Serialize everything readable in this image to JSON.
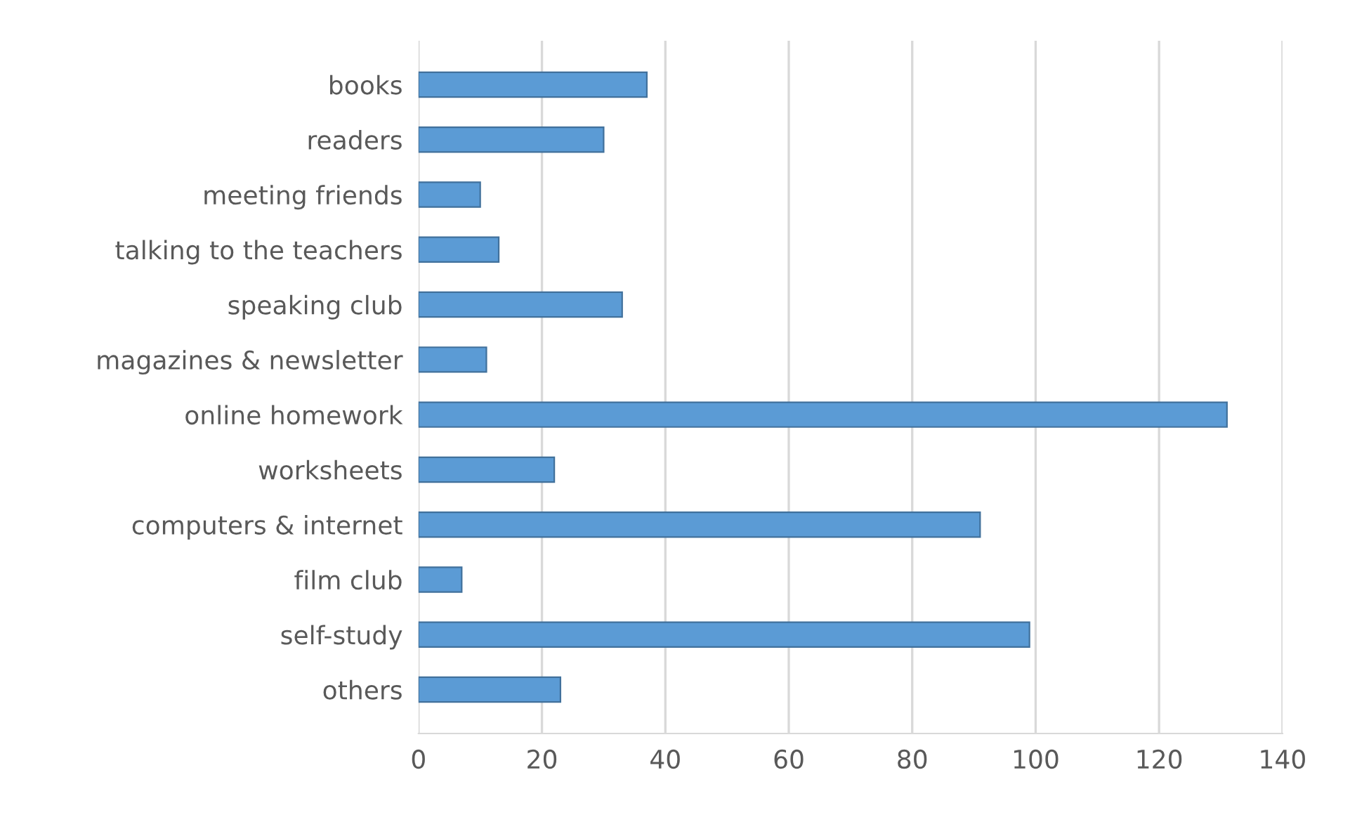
{
  "chart_data": {
    "type": "bar",
    "orientation": "horizontal",
    "categories": [
      "books",
      "readers",
      "meeting friends",
      "talking to the teachers",
      "speaking club",
      "magazines & newsletter",
      "online homework",
      "worksheets",
      "computers & internet",
      "film club",
      "self-study",
      "others"
    ],
    "values": [
      37,
      30,
      10,
      13,
      33,
      11,
      131,
      22,
      91,
      7,
      99,
      23
    ],
    "color": "#5b9bd5",
    "xlim": [
      0,
      140
    ],
    "xticks": [
      0,
      20,
      40,
      60,
      80,
      100,
      120,
      140
    ],
    "grid": "x",
    "legend": false
  }
}
